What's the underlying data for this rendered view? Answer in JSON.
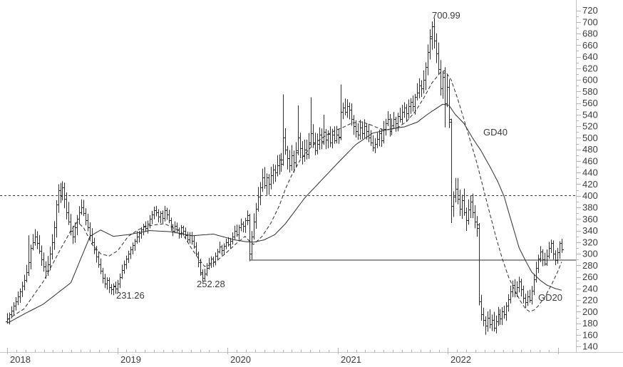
{
  "chart": {
    "annotations": {
      "peak": "700.99",
      "low_2018": "231.26",
      "low_2019": "252.28",
      "ma40_label": "GD40",
      "ma20_label": "GD20"
    },
    "colors": {
      "background": "#ffffff",
      "bars": "#2e2e2e",
      "ma40": "#2e2e2e",
      "ma20": "#2e2e2e",
      "dotted_level": "#3c3c3c",
      "support_level": "#2e2e2e",
      "axis_line": "#c4c4c4",
      "tick": "#b4b4b4",
      "label_text": "#3c3c3c"
    },
    "chart_data": {
      "type": "ohlc",
      "title": "",
      "xlabel": "",
      "ylabel": "",
      "grid": false,
      "legend_position": "inline-labels",
      "x_axis": {
        "years": [
          "2018",
          "2019",
          "2020",
          "2021",
          "2022"
        ],
        "boundary_tick_count": 6,
        "minor_ticks_per_year": 12
      },
      "y_axis": {
        "min": 140,
        "max": 720,
        "tick_step": 20,
        "minor_step": 10,
        "labels": [
          720,
          700,
          680,
          660,
          640,
          620,
          600,
          580,
          560,
          540,
          520,
          500,
          480,
          460,
          440,
          420,
          400,
          380,
          360,
          340,
          320,
          300,
          280,
          260,
          240,
          220,
          200,
          180,
          160,
          140
        ]
      },
      "levels": {
        "dotted_resistance": 400,
        "support": 289,
        "support_start_week": 114
      },
      "marked_values": {
        "all_time_high": 700.99,
        "low_2018": 231.26,
        "low_2019": 252.28
      },
      "series": {
        "price_weekly_close": [
          188,
          195,
          202,
          210,
          218,
          226,
          235,
          245,
          255,
          268,
          285,
          310,
          320,
          330,
          318,
          305,
          290,
          278,
          270,
          282,
          300,
          320,
          345,
          385,
          410,
          400,
          415,
          395,
          372,
          355,
          340,
          330,
          345,
          360,
          372,
          380,
          370,
          358,
          345,
          332,
          320,
          308,
          295,
          282,
          270,
          258,
          248,
          255,
          242,
          238,
          245,
          240,
          248,
          260,
          272,
          282,
          292,
          300,
          308,
          315,
          322,
          330,
          336,
          342,
          348,
          344,
          352,
          360,
          368,
          375,
          372,
          364,
          370,
          362,
          375,
          368,
          358,
          348,
          340,
          348,
          342,
          335,
          345,
          340,
          332,
          325,
          332,
          322,
          312,
          300,
          285,
          268,
          258,
          266,
          276,
          284,
          292,
          286,
          296,
          304,
          312,
          306,
          314,
          320,
          316,
          322,
          330,
          340,
          333,
          345,
          352,
          348,
          358,
          366,
          300,
          330,
          355,
          378,
          398,
          415,
          432,
          418,
          432,
          420,
          435,
          445,
          440,
          452,
          462,
          455,
          500,
          480,
          465,
          452,
          470,
          458,
          475,
          500,
          482,
          468,
          480,
          472,
          490,
          508,
          492,
          478,
          490,
          505,
          492,
          510,
          497,
          507,
          492,
          505,
          496,
          505,
          500,
          545,
          552,
          545,
          555,
          548,
          532,
          520,
          512,
          505,
          518,
          508,
          520,
          512,
          500,
          492,
          483,
          490,
          498,
          508,
          495,
          515,
          525,
          532,
          512,
          522,
          532,
          525,
          538,
          532,
          545,
          552,
          542,
          555,
          562,
          555,
          570,
          578,
          590,
          585,
          600,
          622,
          648,
          672,
          692,
          668,
          645,
          618,
          585,
          605,
          560,
          588,
          532,
          382,
          398,
          412,
          395,
          378,
          392,
          372,
          358,
          376,
          390,
          372,
          356,
          344,
          218,
          196,
          186,
          176,
          190,
          178,
          186,
          172,
          183,
          196,
          188,
          200,
          196,
          210,
          222,
          235,
          246,
          232,
          242,
          252,
          238,
          224,
          216,
          226,
          220,
          236,
          256,
          276,
          292,
          304,
          290,
          283,
          296,
          310,
          318,
          300,
          289,
          302,
          318,
          308
        ],
        "bar_overrides": {
          "10": [
            268,
            332,
            262,
            285
          ],
          "26": [
            400,
            425,
            392,
            415
          ],
          "51": [
            244,
            252,
            231.26,
            240
          ],
          "92": [
            266,
            273,
            252.28,
            258
          ],
          "114": [
            358,
            369,
            287,
            300
          ],
          "130": [
            462,
            575,
            452,
            500
          ],
          "137": [
            478,
            556,
            470,
            500
          ],
          "143": [
            492,
            570,
            485,
            508
          ],
          "149": [
            494,
            540,
            488,
            510
          ],
          "157": [
            502,
            592,
            496,
            545
          ],
          "200": [
            675,
            700.99,
            652,
            692
          ],
          "206": [
            612,
            622,
            518,
            560
          ],
          "209": [
            528,
            533,
            353,
            382
          ],
          "222": [
            350,
            353,
            211,
            218
          ]
        },
        "weekly_range_anchors": [
          [
            0,
            14
          ],
          [
            8,
            18
          ],
          [
            14,
            20
          ],
          [
            22,
            26
          ],
          [
            27,
            26
          ],
          [
            34,
            20
          ],
          [
            44,
            16
          ],
          [
            51,
            14
          ],
          [
            57,
            14
          ],
          [
            70,
            16
          ],
          [
            80,
            13
          ],
          [
            92,
            13
          ],
          [
            104,
            13
          ],
          [
            111,
            16
          ],
          [
            118,
            24
          ],
          [
            126,
            26
          ],
          [
            134,
            28
          ],
          [
            142,
            28
          ],
          [
            152,
            22
          ],
          [
            162,
            24
          ],
          [
            172,
            20
          ],
          [
            182,
            20
          ],
          [
            192,
            22
          ],
          [
            199,
            30
          ],
          [
            205,
            30
          ],
          [
            213,
            30
          ],
          [
            219,
            26
          ],
          [
            227,
            22
          ],
          [
            233,
            20
          ],
          [
            241,
            18
          ],
          [
            249,
            17
          ],
          [
            256,
            16
          ],
          [
            261,
            15
          ]
        ],
        "gd40_anchors": [
          [
            0,
            180
          ],
          [
            8,
            196
          ],
          [
            17,
            213
          ],
          [
            30,
            250
          ],
          [
            39,
            330
          ],
          [
            44,
            341
          ],
          [
            50,
            330
          ],
          [
            57,
            333
          ],
          [
            67,
            340
          ],
          [
            77,
            338
          ],
          [
            87,
            331
          ],
          [
            97,
            334
          ],
          [
            107,
            324
          ],
          [
            112,
            321
          ],
          [
            116,
            320
          ],
          [
            121,
            324
          ],
          [
            126,
            333
          ],
          [
            131,
            352
          ],
          [
            140,
            396
          ],
          [
            148,
            427
          ],
          [
            156,
            458
          ],
          [
            164,
            488
          ],
          [
            172,
            508
          ],
          [
            180,
            515
          ],
          [
            187,
            519
          ],
          [
            193,
            527
          ],
          [
            198,
            541
          ],
          [
            205,
            558
          ],
          [
            208,
            556
          ],
          [
            211,
            540
          ],
          [
            215,
            525
          ],
          [
            219,
            500
          ],
          [
            223,
            478
          ],
          [
            227,
            452
          ],
          [
            231,
            424
          ],
          [
            234,
            398
          ],
          [
            237,
            360
          ],
          [
            241,
            310
          ],
          [
            244,
            288
          ],
          [
            247,
            268
          ],
          [
            251,
            254
          ],
          [
            254,
            246
          ],
          [
            258,
            240
          ],
          [
            261,
            237
          ]
        ],
        "gd20_anchors": [
          [
            0,
            186
          ],
          [
            8,
            205
          ],
          [
            17,
            252
          ],
          [
            25,
            307
          ],
          [
            30,
            340
          ],
          [
            33,
            355
          ],
          [
            36,
            345
          ],
          [
            40,
            316
          ],
          [
            44,
            300
          ],
          [
            48,
            296
          ],
          [
            52,
            305
          ],
          [
            57,
            330
          ],
          [
            62,
            342
          ],
          [
            66,
            348
          ],
          [
            70,
            350
          ],
          [
            74,
            352
          ],
          [
            78,
            345
          ],
          [
            82,
            338
          ],
          [
            87,
            308
          ],
          [
            90,
            292
          ],
          [
            93,
            278
          ],
          [
            96,
            281
          ],
          [
            99,
            289
          ],
          [
            102,
            298
          ],
          [
            105,
            308
          ],
          [
            108,
            318
          ],
          [
            112,
            330
          ],
          [
            114,
            322
          ],
          [
            116,
            316
          ],
          [
            120,
            330
          ],
          [
            124,
            352
          ],
          [
            128,
            382
          ],
          [
            131,
            412
          ],
          [
            134,
            436
          ],
          [
            138,
            462
          ],
          [
            142,
            480
          ],
          [
            146,
            494
          ],
          [
            150,
            504
          ],
          [
            154,
            512
          ],
          [
            158,
            518
          ],
          [
            162,
            525
          ],
          [
            166,
            528
          ],
          [
            170,
            524
          ],
          [
            174,
            518
          ],
          [
            177,
            514
          ],
          [
            180,
            514
          ],
          [
            184,
            518
          ],
          [
            188,
            528
          ],
          [
            192,
            545
          ],
          [
            196,
            568
          ],
          [
            200,
            595
          ],
          [
            204,
            613
          ],
          [
            206,
            616
          ],
          [
            209,
            600
          ],
          [
            212,
            568
          ],
          [
            215,
            532
          ],
          [
            218,
            495
          ],
          [
            221,
            458
          ],
          [
            224,
            415
          ],
          [
            227,
            372
          ],
          [
            230,
            330
          ],
          [
            233,
            292
          ],
          [
            236,
            260
          ],
          [
            239,
            236
          ],
          [
            242,
            216
          ],
          [
            244,
            205
          ],
          [
            246,
            200
          ],
          [
            248,
            203
          ],
          [
            250,
            210
          ],
          [
            253,
            225
          ],
          [
            256,
            245
          ],
          [
            259,
            268
          ],
          [
            261,
            286
          ]
        ]
      }
    }
  }
}
